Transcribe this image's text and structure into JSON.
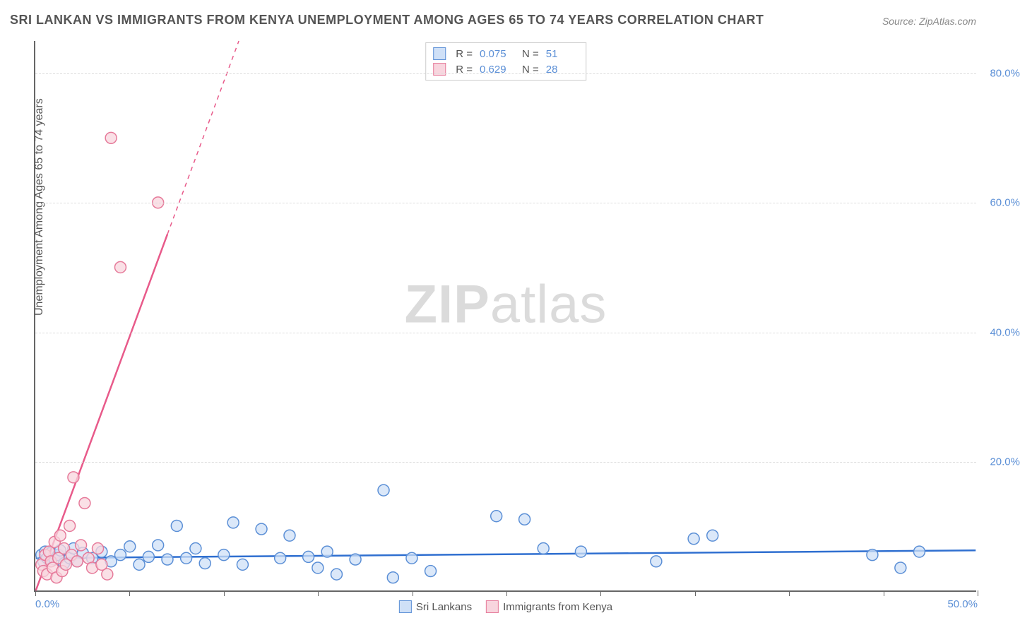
{
  "title": "SRI LANKAN VS IMMIGRANTS FROM KENYA UNEMPLOYMENT AMONG AGES 65 TO 74 YEARS CORRELATION CHART",
  "source": "Source: ZipAtlas.com",
  "y_axis_label": "Unemployment Among Ages 65 to 74 years",
  "watermark": {
    "part1": "ZIP",
    "part2": "atlas"
  },
  "chart": {
    "type": "scatter",
    "background_color": "#ffffff",
    "grid_color": "#dcdcdc",
    "axis_color": "#666666",
    "xlim": [
      0,
      50
    ],
    "ylim": [
      0,
      85
    ],
    "x_ticks": [
      0,
      5,
      10,
      15,
      20,
      25,
      30,
      35,
      40,
      45,
      50
    ],
    "x_tick_labels": {
      "0": "0.0%",
      "50": "50.0%"
    },
    "y_ticks": [
      20,
      40,
      60,
      80
    ],
    "y_tick_labels": {
      "20": "20.0%",
      "40": "40.0%",
      "60": "60.0%",
      "80": "80.0%"
    },
    "marker_radius": 8,
    "marker_stroke_width": 1.5,
    "trend_line_width": 2.5,
    "series": [
      {
        "name": "Sri Lankans",
        "fill_color": "#cfe0f7",
        "stroke_color": "#5b8fd6",
        "line_color": "#2f6fd0",
        "R": "0.075",
        "N": "51",
        "trend": {
          "x1": 0,
          "y1": 5.0,
          "x2": 50,
          "y2": 6.2
        },
        "points": [
          [
            0.3,
            5.5
          ],
          [
            0.4,
            4.5
          ],
          [
            0.5,
            6.0
          ],
          [
            0.6,
            5.0
          ],
          [
            0.8,
            5.8
          ],
          [
            1.0,
            4.8
          ],
          [
            1.2,
            5.5
          ],
          [
            1.3,
            6.2
          ],
          [
            1.5,
            4.2
          ],
          [
            1.8,
            5.0
          ],
          [
            2.0,
            6.5
          ],
          [
            2.2,
            4.5
          ],
          [
            2.5,
            5.8
          ],
          [
            3.0,
            5.0
          ],
          [
            3.5,
            6.0
          ],
          [
            4.0,
            4.5
          ],
          [
            4.5,
            5.5
          ],
          [
            5.0,
            6.8
          ],
          [
            5.5,
            4.0
          ],
          [
            6.0,
            5.2
          ],
          [
            6.5,
            7.0
          ],
          [
            7.0,
            4.8
          ],
          [
            7.5,
            10.0
          ],
          [
            8.0,
            5.0
          ],
          [
            8.5,
            6.5
          ],
          [
            9.0,
            4.2
          ],
          [
            10.0,
            5.5
          ],
          [
            10.5,
            10.5
          ],
          [
            11.0,
            4.0
          ],
          [
            12.0,
            9.5
          ],
          [
            13.0,
            5.0
          ],
          [
            13.5,
            8.5
          ],
          [
            14.5,
            5.2
          ],
          [
            15.0,
            3.5
          ],
          [
            15.5,
            6.0
          ],
          [
            16.0,
            2.5
          ],
          [
            17.0,
            4.8
          ],
          [
            18.5,
            15.5
          ],
          [
            19.0,
            2.0
          ],
          [
            20.0,
            5.0
          ],
          [
            21.0,
            3.0
          ],
          [
            24.5,
            11.5
          ],
          [
            26.0,
            11.0
          ],
          [
            27.0,
            6.5
          ],
          [
            29.0,
            6.0
          ],
          [
            33.0,
            4.5
          ],
          [
            35.0,
            8.0
          ],
          [
            36.0,
            8.5
          ],
          [
            44.5,
            5.5
          ],
          [
            46.0,
            3.5
          ],
          [
            47.0,
            6.0
          ]
        ]
      },
      {
        "name": "Immigrants from Kenya",
        "fill_color": "#f8d5de",
        "stroke_color": "#e67a9a",
        "line_color": "#e85a8a",
        "R": "0.629",
        "N": "28",
        "trend": {
          "x1": 0,
          "y1": 0,
          "x2": 10.8,
          "y2": 85
        },
        "trend_solid_end_x": 7.0,
        "points": [
          [
            0.3,
            4.0
          ],
          [
            0.4,
            3.0
          ],
          [
            0.5,
            5.5
          ],
          [
            0.6,
            2.5
          ],
          [
            0.7,
            6.0
          ],
          [
            0.8,
            4.5
          ],
          [
            0.9,
            3.5
          ],
          [
            1.0,
            7.5
          ],
          [
            1.1,
            2.0
          ],
          [
            1.2,
            5.0
          ],
          [
            1.3,
            8.5
          ],
          [
            1.4,
            3.0
          ],
          [
            1.5,
            6.5
          ],
          [
            1.6,
            4.0
          ],
          [
            1.8,
            10.0
          ],
          [
            1.9,
            5.5
          ],
          [
            2.0,
            17.5
          ],
          [
            2.2,
            4.5
          ],
          [
            2.4,
            7.0
          ],
          [
            2.6,
            13.5
          ],
          [
            2.8,
            5.0
          ],
          [
            3.0,
            3.5
          ],
          [
            3.3,
            6.5
          ],
          [
            3.5,
            4.0
          ],
          [
            3.8,
            2.5
          ],
          [
            4.0,
            70.0
          ],
          [
            4.5,
            50.0
          ],
          [
            6.5,
            60.0
          ]
        ]
      }
    ]
  },
  "legend_bottom": [
    {
      "label": "Sri Lankans",
      "fill": "#cfe0f7",
      "stroke": "#5b8fd6"
    },
    {
      "label": "Immigrants from Kenya",
      "fill": "#f8d5de",
      "stroke": "#e67a9a"
    }
  ]
}
